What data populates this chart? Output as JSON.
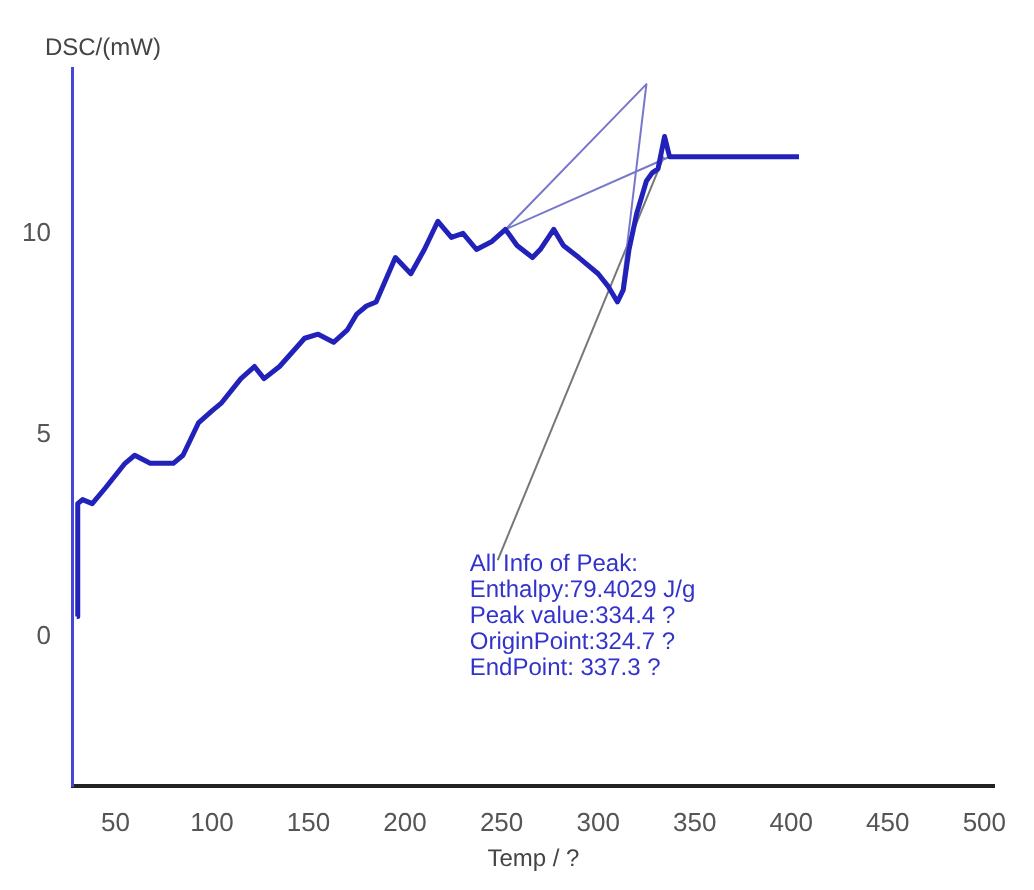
{
  "chart_data": {
    "type": "line",
    "xlabel": "Temp / ?",
    "ylabel": "DSC/(mW)",
    "xlim": [
      28,
      505
    ],
    "ylim": [
      -3.7,
      14.1
    ],
    "xticks": [
      50,
      100,
      150,
      200,
      250,
      300,
      350,
      400,
      450,
      500
    ],
    "yticks": [
      0,
      5,
      10
    ],
    "grid": false,
    "legend": false,
    "marker": "none",
    "line_style": "solid",
    "series": [
      {
        "color": "#2222bb",
        "x": [
          30,
          30.5,
          33,
          38,
          45,
          55,
          60,
          68,
          80,
          85,
          93,
          100,
          105,
          115,
          122,
          127,
          135,
          148,
          155,
          163,
          170,
          175,
          180,
          185,
          195,
          203,
          210,
          217,
          224,
          230,
          237,
          245,
          252,
          258,
          266,
          270,
          277,
          282,
          290,
          300,
          305,
          310,
          313,
          316,
          320,
          325,
          328,
          331,
          334.4,
          337,
          340,
          404
        ],
        "values": [
          0.5,
          3.3,
          3.4,
          3.3,
          3.7,
          4.3,
          4.5,
          4.3,
          4.3,
          4.5,
          5.3,
          5.6,
          5.8,
          6.4,
          6.7,
          6.4,
          6.7,
          7.4,
          7.5,
          7.3,
          7.6,
          8.0,
          8.2,
          8.3,
          9.4,
          9.0,
          9.6,
          10.3,
          9.9,
          10.0,
          9.6,
          9.8,
          10.1,
          9.7,
          9.4,
          9.6,
          10.1,
          9.7,
          9.4,
          9.0,
          8.7,
          8.3,
          8.6,
          9.6,
          10.5,
          11.3,
          11.5,
          11.6,
          12.4,
          11.9,
          11.9,
          11.9
        ]
      },
      {
        "color": "#7777cc",
        "x": [
          337,
          252,
          325,
          312
        ],
        "values": [
          11.9,
          10.1,
          13.7,
          8.5
        ]
      },
      {
        "color": "#777777",
        "x": [
          248,
          334
        ],
        "values": [
          1.9,
          11.9
        ]
      }
    ],
    "annotations": [
      {
        "text": "All Info of Peak:\nEnthalpy:79.4029 J/g\nPeak value:334.4 ?\nOriginPoint:324.7 ?\nEndPoint: 337.3 ?",
        "x": 248,
        "y": 1.9
      }
    ]
  }
}
